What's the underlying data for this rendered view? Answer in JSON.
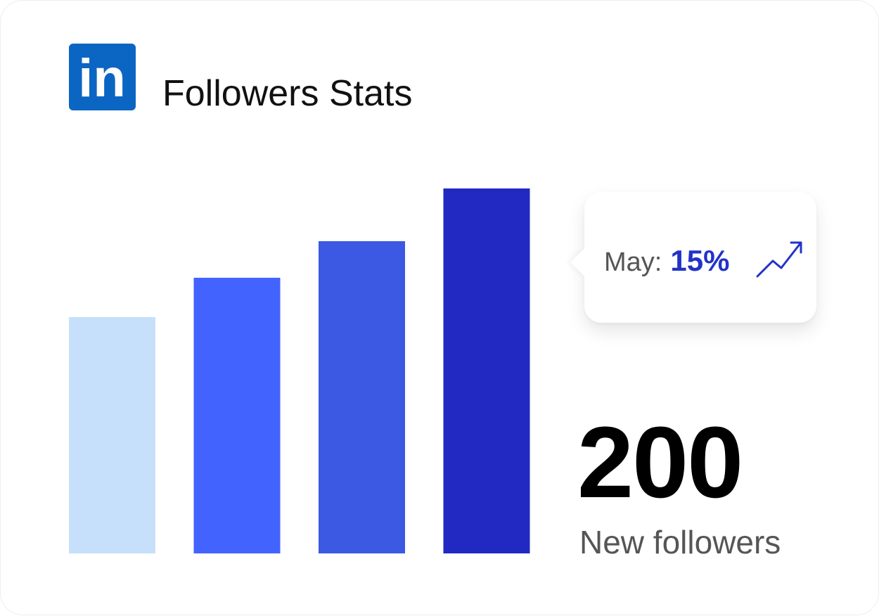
{
  "header": {
    "logo_text": "in",
    "logo_color": "#0a66c2",
    "title": "Followers Stats"
  },
  "chart_data": {
    "type": "bar",
    "categories": [
      "",
      "",
      "",
      ""
    ],
    "values": [
      336,
      392,
      444,
      519
    ],
    "colors": [
      "#c6e0fb",
      "#4363ff",
      "#3b59e2",
      "#2229c2"
    ],
    "title": "Followers Stats",
    "xlabel": "",
    "ylabel": "",
    "grid": false
  },
  "tooltip": {
    "label": "May:",
    "value": "15%",
    "icon": "trend-up-icon",
    "accent": "#2233c8"
  },
  "summary": {
    "value": "200",
    "caption": "New followers"
  }
}
